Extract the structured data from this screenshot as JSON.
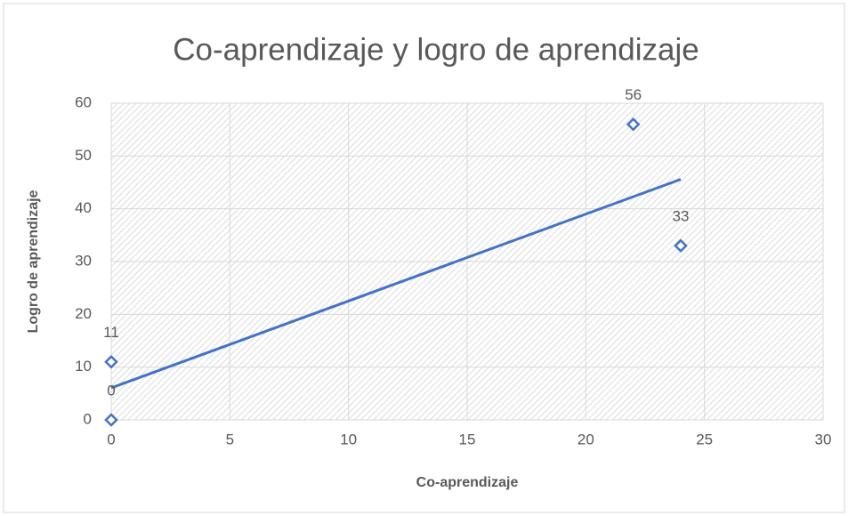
{
  "chart_data": {
    "type": "scatter",
    "title": "Co-aprendizaje y logro de aprendizaje",
    "x_label": "Co-aprendizaje",
    "y_label": "Logro de aprendizaje",
    "series": [
      {
        "name": "Logro de aprendizaje",
        "color": "#4472c4",
        "x": [
          0,
          0,
          22,
          24
        ],
        "values": [
          0,
          11,
          56,
          33
        ]
      }
    ],
    "trendline": "linear",
    "xlim": [
      0,
      30
    ],
    "xticks": [
      0,
      5,
      10,
      15,
      20,
      25,
      30
    ],
    "ylim": [
      0,
      60
    ],
    "yticks": [
      0,
      10,
      20,
      30,
      40,
      50,
      60
    ],
    "grid": true
  }
}
